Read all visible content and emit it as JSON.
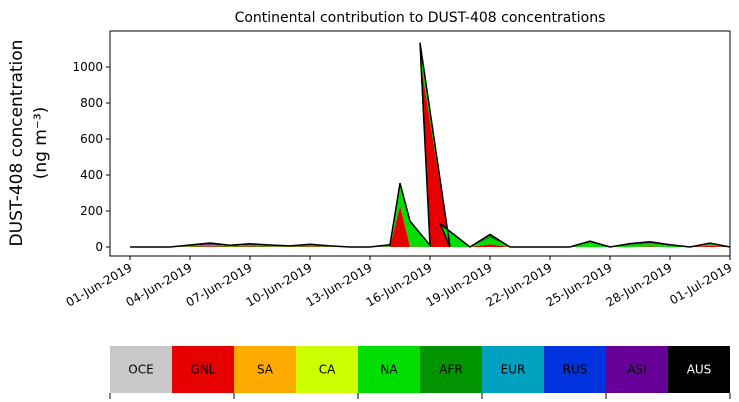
{
  "chart_data": {
    "type": "area",
    "stacked": true,
    "title": "Continental contribution to DUST-408 concentrations",
    "ylabel_line1": "DUST-408 concentration",
    "ylabel_line2": "(ng m⁻³)",
    "xlim": [
      "2019-05-31",
      "2019-07-01"
    ],
    "ylim": [
      -50,
      1200
    ],
    "y_ticks": [
      0,
      200,
      400,
      600,
      800,
      1000
    ],
    "x_ticks": [
      "01-Jun-2019",
      "04-Jun-2019",
      "07-Jun-2019",
      "10-Jun-2019",
      "13-Jun-2019",
      "16-Jun-2019",
      "19-Jun-2019",
      "22-Jun-2019",
      "25-Jun-2019",
      "28-Jun-2019",
      "01-Jul-2019"
    ],
    "x": [
      "2019-06-01",
      "2019-06-02",
      "2019-06-03",
      "2019-06-04",
      "2019-06-05",
      "2019-06-06",
      "2019-06-07",
      "2019-06-08",
      "2019-06-09",
      "2019-06-10",
      "2019-06-11",
      "2019-06-12",
      "2019-06-13",
      "2019-06-14",
      "2019-06-15",
      "2019-06-16",
      "2019-06-17",
      "2019-06-18",
      "2019-06-19",
      "2019-06-20",
      "2019-06-21",
      "2019-06-22",
      "2019-06-23",
      "2019-06-24",
      "2019-06-25",
      "2019-06-26",
      "2019-06-27",
      "2019-06-28",
      "2019-06-29",
      "2019-06-30",
      "2019-07-01",
      "2019-06-14T12:00",
      "2019-06-15T12:00",
      "2019-06-16T12:00"
    ],
    "x_order": [
      0,
      1,
      2,
      3,
      4,
      5,
      6,
      7,
      8,
      9,
      10,
      11,
      12,
      13,
      31,
      14,
      15,
      32,
      16,
      33,
      17,
      18,
      19,
      20,
      21,
      22,
      23,
      24,
      25,
      26,
      27,
      28,
      29,
      30
    ],
    "series": [
      {
        "name": "OCE",
        "color": "#c8c8c8",
        "values": [
          0,
          0,
          0,
          0,
          0,
          0,
          0,
          0,
          0,
          0,
          0,
          0,
          0,
          0,
          0,
          0,
          0,
          0,
          0,
          0,
          0,
          0,
          0,
          0,
          0,
          0,
          0,
          0,
          0,
          0,
          0,
          0,
          0,
          0
        ]
      },
      {
        "name": "GNL",
        "color": "#e60000",
        "values": [
          0,
          0,
          0,
          2,
          5,
          2,
          4,
          2,
          1,
          4,
          1,
          0,
          0,
          2,
          2,
          0,
          0,
          0,
          15,
          0,
          0,
          0,
          0,
          0,
          0,
          0,
          3,
          0,
          0,
          8,
          0,
          230,
          1050,
          0
        ]
      },
      {
        "name": "SA",
        "color": "#ffaa00",
        "values": [
          0,
          0,
          0,
          0,
          0,
          0,
          0,
          0,
          0,
          0,
          0,
          0,
          0,
          0,
          0,
          0,
          0,
          0,
          0,
          0,
          0,
          0,
          0,
          0,
          0,
          0,
          0,
          0,
          0,
          0,
          0,
          0,
          0,
          0
        ]
      },
      {
        "name": "CA",
        "color": "#ccff00",
        "values": [
          0,
          0,
          0,
          0,
          0,
          0,
          0,
          0,
          0,
          0,
          0,
          0,
          0,
          0,
          0,
          0,
          0,
          0,
          0,
          0,
          0,
          0,
          0,
          0,
          0,
          0,
          0,
          0,
          0,
          0,
          0,
          0,
          0,
          0
        ]
      },
      {
        "name": "NA",
        "color": "#00dd00",
        "values": [
          0,
          0,
          0,
          3,
          6,
          3,
          5,
          3,
          2,
          4,
          2,
          0,
          0,
          5,
          140,
          10,
          0,
          0,
          35,
          0,
          0,
          0,
          0,
          25,
          0,
          10,
          15,
          8,
          0,
          6,
          0,
          110,
          70,
          130
        ]
      },
      {
        "name": "AFR",
        "color": "#009500",
        "values": [
          0,
          0,
          0,
          2,
          3,
          2,
          3,
          2,
          1,
          2,
          1,
          0,
          0,
          3,
          2,
          0,
          0,
          0,
          15,
          0,
          0,
          0,
          0,
          6,
          0,
          5,
          5,
          2,
          0,
          4,
          0,
          10,
          15,
          0
        ]
      },
      {
        "name": "EUR",
        "color": "#00a0c0",
        "values": [
          0,
          0,
          0,
          0,
          0,
          0,
          0,
          0,
          0,
          0,
          0,
          0,
          0,
          0,
          0,
          0,
          0,
          0,
          0,
          0,
          0,
          0,
          0,
          0,
          0,
          0,
          0,
          0,
          0,
          0,
          0,
          0,
          0,
          0
        ]
      },
      {
        "name": "RUS",
        "color": "#0033dd",
        "values": [
          0,
          0,
          0,
          0,
          0,
          0,
          0,
          0,
          0,
          0,
          0,
          0,
          0,
          0,
          0,
          0,
          0,
          0,
          0,
          0,
          0,
          0,
          0,
          0,
          0,
          0,
          0,
          0,
          0,
          0,
          0,
          0,
          0,
          0
        ]
      },
      {
        "name": "ASI",
        "color": "#660099",
        "values": [
          0,
          0,
          0,
          4,
          8,
          3,
          6,
          4,
          2,
          5,
          2,
          0,
          0,
          2,
          0,
          0,
          0,
          0,
          5,
          0,
          0,
          0,
          0,
          2,
          0,
          4,
          6,
          3,
          0,
          3,
          0,
          5,
          0,
          0
        ]
      },
      {
        "name": "AUS",
        "color": "#000000",
        "values": [
          0,
          0,
          0,
          0,
          0,
          0,
          0,
          0,
          0,
          0,
          0,
          0,
          0,
          0,
          0,
          0,
          0,
          0,
          0,
          0,
          0,
          0,
          0,
          0,
          0,
          0,
          0,
          0,
          0,
          0,
          0,
          0,
          0,
          0
        ]
      }
    ],
    "legend_position": "bottom",
    "grid": false
  }
}
